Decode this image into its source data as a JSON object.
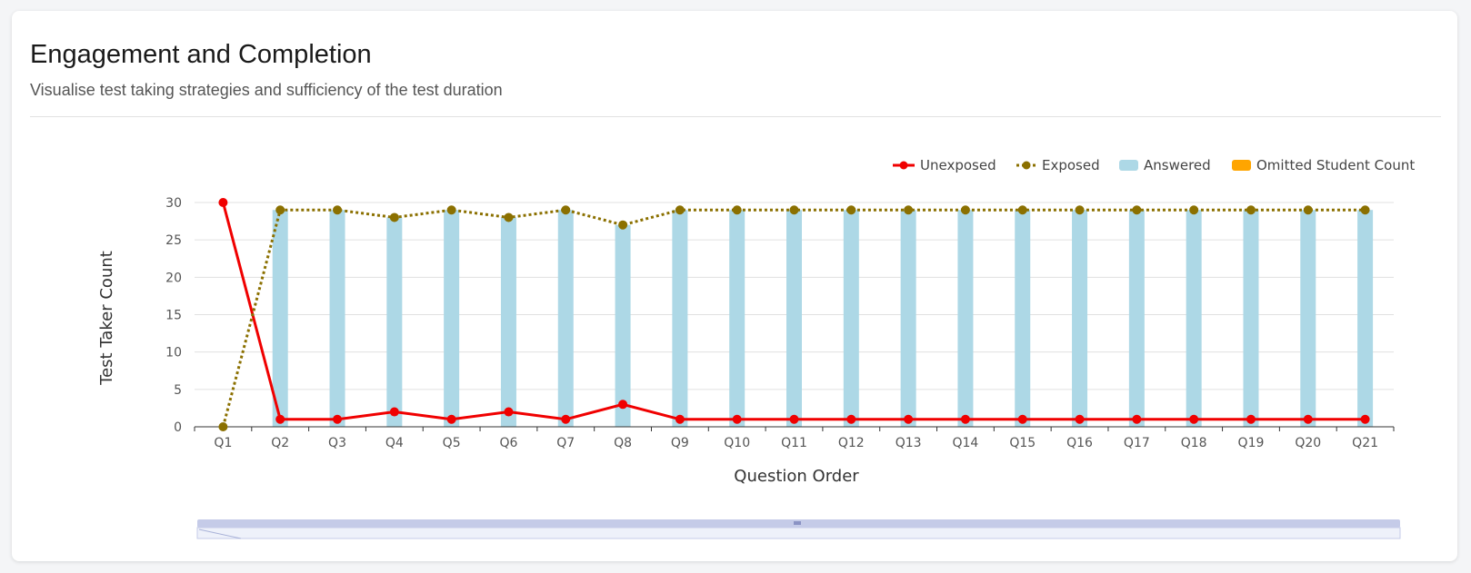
{
  "header": {
    "title": "Engagement and Completion",
    "subtitle": "Visualise test taking strategies and sufficiency of the test duration"
  },
  "chart_data": {
    "type": "bar",
    "xlabel": "Question Order",
    "ylabel": "Test Taker Count",
    "ylim": [
      0,
      30
    ],
    "yticks": [
      0,
      5,
      10,
      15,
      20,
      25,
      30
    ],
    "grid": true,
    "legend_position": "top-right",
    "categories": [
      "Q1",
      "Q2",
      "Q3",
      "Q4",
      "Q5",
      "Q6",
      "Q7",
      "Q8",
      "Q9",
      "Q10",
      "Q11",
      "Q12",
      "Q13",
      "Q14",
      "Q15",
      "Q16",
      "Q17",
      "Q18",
      "Q19",
      "Q20",
      "Q21"
    ],
    "series": [
      {
        "name": "Unexposed",
        "type": "line",
        "style": "solid",
        "color": "#f00000",
        "values": [
          30,
          1,
          1,
          2,
          1,
          2,
          1,
          3,
          1,
          1,
          1,
          1,
          1,
          1,
          1,
          1,
          1,
          1,
          1,
          1,
          1
        ]
      },
      {
        "name": "Exposed",
        "type": "line",
        "style": "dotted",
        "color": "#8b7000",
        "values": [
          0,
          29,
          29,
          28,
          29,
          28,
          29,
          27,
          29,
          29,
          29,
          29,
          29,
          29,
          29,
          29,
          29,
          29,
          29,
          29,
          29
        ]
      },
      {
        "name": "Answered",
        "type": "bar",
        "color": "#add8e6",
        "values": [
          0,
          29,
          29,
          28,
          29,
          28,
          29,
          27,
          29,
          29,
          29,
          29,
          29,
          29,
          29,
          29,
          29,
          29,
          29,
          29,
          29
        ]
      },
      {
        "name": "Omitted Student Count",
        "type": "bar",
        "color": "#ffa500",
        "values": [
          0,
          0,
          0,
          0,
          0,
          0,
          0,
          0,
          0,
          0,
          0,
          0,
          0,
          0,
          0,
          0,
          0,
          0,
          0,
          0,
          0
        ]
      }
    ],
    "data_zoom": {
      "range": [
        0,
        100
      ]
    }
  },
  "colors": {
    "axis": "#333333",
    "grid": "#e0e0e0",
    "tick_text": "#555555",
    "zoom_bar": "#c5cbe8",
    "zoom_bg": "#eef1fa"
  }
}
